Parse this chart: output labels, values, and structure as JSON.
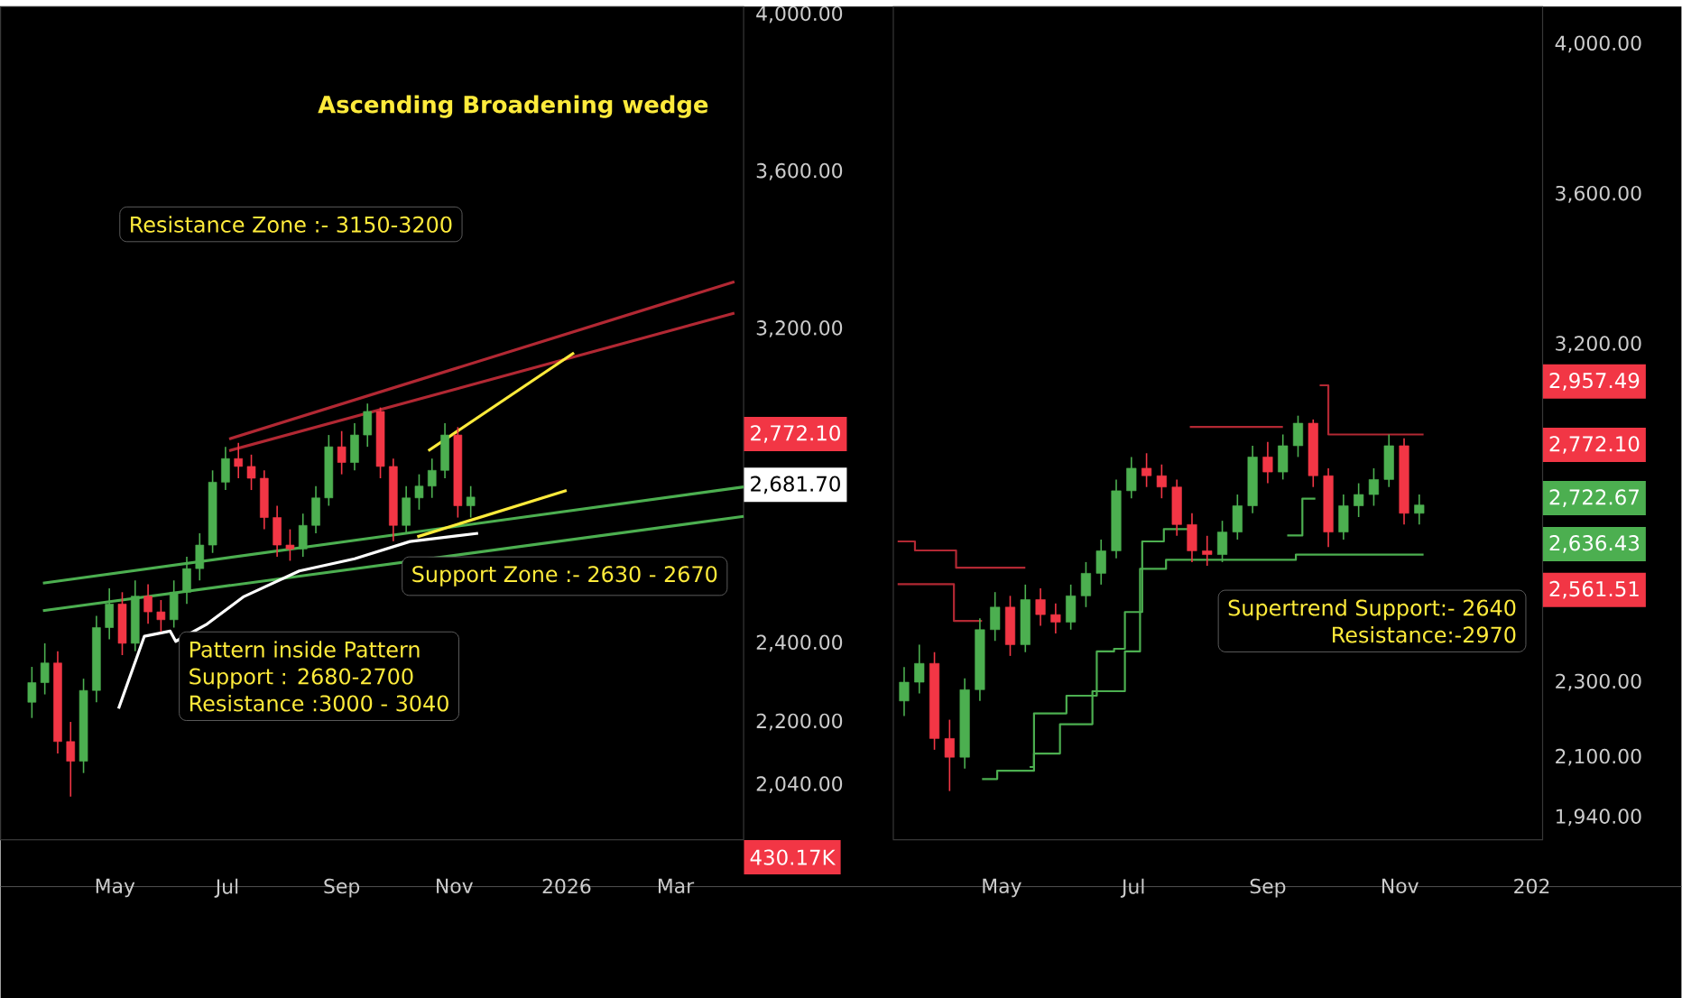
{
  "chart_data": [
    {
      "type": "candlestick",
      "title": "Ascending Broadening wedge",
      "x": [
        "2025-03-17",
        "2025-03-24",
        "2025-03-31",
        "2025-04-07",
        "2025-04-14",
        "2025-04-21",
        "2025-04-28",
        "2025-05-05",
        "2025-05-12",
        "2025-05-19",
        "2025-05-26",
        "2025-06-02",
        "2025-06-09",
        "2025-06-16",
        "2025-06-23",
        "2025-06-30",
        "2025-07-07",
        "2025-07-14",
        "2025-07-21",
        "2025-07-28",
        "2025-08-04",
        "2025-08-11",
        "2025-08-18",
        "2025-08-25",
        "2025-09-01",
        "2025-09-08",
        "2025-09-15",
        "2025-09-22",
        "2025-09-29",
        "2025-10-06",
        "2025-10-13",
        "2025-10-20",
        "2025-10-27",
        "2025-11-03",
        "2025-11-10"
      ],
      "ohlc": [
        [
          2250,
          2340,
          2210,
          2300
        ],
        [
          2300,
          2400,
          2270,
          2350
        ],
        [
          2350,
          2380,
          2120,
          2150
        ],
        [
          2150,
          2200,
          2010,
          2100
        ],
        [
          2100,
          2310,
          2070,
          2280
        ],
        [
          2280,
          2470,
          2250,
          2440
        ],
        [
          2440,
          2540,
          2410,
          2500
        ],
        [
          2500,
          2530,
          2370,
          2400
        ],
        [
          2400,
          2560,
          2380,
          2520
        ],
        [
          2520,
          2550,
          2450,
          2480
        ],
        [
          2480,
          2510,
          2430,
          2460
        ],
        [
          2460,
          2560,
          2440,
          2530
        ],
        [
          2530,
          2620,
          2500,
          2590
        ],
        [
          2590,
          2680,
          2560,
          2650
        ],
        [
          2650,
          2840,
          2630,
          2810
        ],
        [
          2810,
          2900,
          2790,
          2870
        ],
        [
          2870,
          2910,
          2820,
          2850
        ],
        [
          2850,
          2880,
          2790,
          2820
        ],
        [
          2820,
          2840,
          2690,
          2720
        ],
        [
          2720,
          2750,
          2620,
          2650
        ],
        [
          2650,
          2690,
          2610,
          2640
        ],
        [
          2640,
          2730,
          2620,
          2700
        ],
        [
          2700,
          2800,
          2680,
          2770
        ],
        [
          2770,
          2930,
          2750,
          2900
        ],
        [
          2900,
          2940,
          2830,
          2860
        ],
        [
          2860,
          2960,
          2840,
          2930
        ],
        [
          2930,
          3010,
          2900,
          2990
        ],
        [
          2990,
          3000,
          2820,
          2850
        ],
        [
          2850,
          2870,
          2660,
          2700
        ],
        [
          2700,
          2800,
          2680,
          2770
        ],
        [
          2770,
          2830,
          2740,
          2800
        ],
        [
          2800,
          2870,
          2770,
          2840
        ],
        [
          2840,
          2960,
          2820,
          2930
        ],
        [
          2930,
          2950,
          2720,
          2750
        ],
        [
          2750,
          2800,
          2720,
          2772.1
        ]
      ],
      "series": [
        {
          "type": "line",
          "color": "#b22833",
          "x": [
            "2025-07-02",
            "2026-04-02"
          ],
          "values": [
            2890,
            3240
          ]
        },
        {
          "type": "line",
          "color": "#b22833",
          "x": [
            "2025-07-02",
            "2026-04-02"
          ],
          "values": [
            2920,
            3320
          ]
        },
        {
          "type": "line",
          "color": "#4caf50",
          "x": [
            "2025-03-23",
            "2026-04-07"
          ],
          "values": [
            2553,
            2798
          ]
        },
        {
          "type": "line",
          "color": "#4caf50",
          "x": [
            "2025-03-23",
            "2026-04-07"
          ],
          "values": [
            2483,
            2723
          ]
        },
        {
          "type": "line",
          "color": "#ffeb3b",
          "x": [
            "2025-10-18",
            "2026-01-05"
          ],
          "values": [
            2890,
            3139
          ]
        },
        {
          "type": "line",
          "color": "#ffeb3b",
          "x": [
            "2025-10-12",
            "2026-01-01"
          ],
          "values": [
            2671,
            2789
          ]
        },
        {
          "type": "line",
          "color": "#ffffff",
          "x": [
            "2025-05-03",
            "2025-05-17",
            "2025-05-31",
            "2025-06-03",
            "2025-06-20",
            "2025-07-10",
            "2025-08-09",
            "2025-09-08",
            "2025-10-08",
            "2025-11-14"
          ],
          "values": [
            2234,
            2418,
            2431,
            2405,
            2449,
            2519,
            2584,
            2615,
            2659,
            2680
          ]
        }
      ],
      "annotations": [
        "Resistance Zone :- 3150-3200",
        "Support Zone :- 2630 - 2670",
        "Pattern inside Pattern",
        "Support : 2680-2700",
        "Resistance :3000 - 3040",
        "2,772.10",
        "2,681.70",
        "430.17K"
      ],
      "xlim": [
        "2025-02-28",
        "2026-04-07"
      ],
      "xticks": [
        {
          "value": "2025-05-01",
          "label": "May"
        },
        {
          "value": "2025-07-01",
          "label": "Jul"
        },
        {
          "value": "2025-09-01",
          "label": "Sep"
        },
        {
          "value": "2025-11-01",
          "label": "Nov"
        },
        {
          "value": "2026-01-01",
          "label": "2026"
        },
        {
          "value": "2026-03-01",
          "label": "Mar"
        }
      ],
      "ylim": [
        1900,
        4020
      ],
      "yticks": [
        {
          "value": 2040,
          "label": "2,040.00"
        },
        {
          "value": 2200,
          "label": "2,200.00"
        },
        {
          "value": 2400,
          "label": "2,400.00"
        },
        {
          "value": 3200,
          "label": "3,200.00"
        },
        {
          "value": 3600,
          "label": "3,600.00"
        },
        {
          "value": 4000,
          "label": "4,000.00"
        }
      ]
    },
    {
      "type": "candlestick",
      "x": [
        "2025-03-17",
        "2025-03-24",
        "2025-03-31",
        "2025-04-07",
        "2025-04-14",
        "2025-04-21",
        "2025-04-28",
        "2025-05-05",
        "2025-05-12",
        "2025-05-19",
        "2025-05-26",
        "2025-06-02",
        "2025-06-09",
        "2025-06-16",
        "2025-06-23",
        "2025-06-30",
        "2025-07-07",
        "2025-07-14",
        "2025-07-21",
        "2025-07-28",
        "2025-08-04",
        "2025-08-11",
        "2025-08-18",
        "2025-08-25",
        "2025-09-01",
        "2025-09-08",
        "2025-09-15",
        "2025-09-22",
        "2025-09-29",
        "2025-10-06",
        "2025-10-13",
        "2025-10-20",
        "2025-10-27",
        "2025-11-03",
        "2025-11-10"
      ],
      "ohlc": [
        [
          2250,
          2340,
          2210,
          2300
        ],
        [
          2300,
          2400,
          2270,
          2350
        ],
        [
          2350,
          2380,
          2120,
          2150
        ],
        [
          2150,
          2200,
          2010,
          2100
        ],
        [
          2100,
          2310,
          2070,
          2280
        ],
        [
          2280,
          2470,
          2250,
          2440
        ],
        [
          2440,
          2540,
          2410,
          2500
        ],
        [
          2500,
          2530,
          2370,
          2400
        ],
        [
          2400,
          2560,
          2380,
          2520
        ],
        [
          2520,
          2550,
          2450,
          2480
        ],
        [
          2480,
          2510,
          2430,
          2460
        ],
        [
          2460,
          2560,
          2440,
          2530
        ],
        [
          2530,
          2620,
          2500,
          2590
        ],
        [
          2590,
          2680,
          2560,
          2650
        ],
        [
          2650,
          2840,
          2630,
          2810
        ],
        [
          2810,
          2900,
          2790,
          2870
        ],
        [
          2870,
          2910,
          2820,
          2850
        ],
        [
          2850,
          2880,
          2790,
          2820
        ],
        [
          2820,
          2840,
          2690,
          2720
        ],
        [
          2720,
          2750,
          2620,
          2650
        ],
        [
          2650,
          2690,
          2610,
          2640
        ],
        [
          2640,
          2730,
          2620,
          2700
        ],
        [
          2700,
          2800,
          2680,
          2770
        ],
        [
          2770,
          2930,
          2750,
          2900
        ],
        [
          2900,
          2940,
          2830,
          2860
        ],
        [
          2860,
          2960,
          2840,
          2930
        ],
        [
          2930,
          3010,
          2900,
          2990
        ],
        [
          2990,
          3000,
          2820,
          2850
        ],
        [
          2850,
          2870,
          2660,
          2700
        ],
        [
          2700,
          2800,
          2680,
          2770
        ],
        [
          2770,
          2830,
          2740,
          2800
        ],
        [
          2800,
          2870,
          2770,
          2840
        ],
        [
          2840,
          2960,
          2820,
          2930
        ],
        [
          2930,
          2950,
          2720,
          2750
        ],
        [
          2750,
          2800,
          2720,
          2772.1
        ]
      ],
      "series": [
        {
          "type": "step",
          "color": "#b22833",
          "x": [
            "2025-03-14",
            "2025-03-22",
            "2025-04-10",
            "2025-05-12"
          ],
          "values": [
            2675,
            2651,
            2605,
            2605
          ]
        },
        {
          "type": "step",
          "color": "#b22833",
          "x": [
            "2025-03-14",
            "2025-04-09",
            "2025-04-22"
          ],
          "values": [
            2561,
            2463,
            2463
          ]
        },
        {
          "type": "step",
          "color": "#4caf50",
          "x": [
            "2025-04-22",
            "2025-04-29",
            "2025-05-16",
            "2025-05-31",
            "2025-06-14",
            "2025-06-22",
            "2025-06-27",
            "2025-07-05",
            "2025-07-15",
            "2025-07-26"
          ],
          "values": [
            2042,
            2064,
            2217,
            2264,
            2382,
            2389,
            2487,
            2675,
            2708,
            2708
          ]
        },
        {
          "type": "step",
          "color": "#4caf50",
          "x": [
            "2025-05-14",
            "2025-05-16",
            "2025-05-28",
            "2025-06-12",
            "2025-06-27",
            "2025-07-04",
            "2025-07-16",
            "2025-09-14",
            "2025-11-12"
          ],
          "values": [
            2074,
            2110,
            2188,
            2276,
            2382,
            2602,
            2626,
            2640,
            2640
          ]
        },
        {
          "type": "step",
          "color": "#4caf50",
          "x": [
            "2025-09-10",
            "2025-09-17",
            "2025-09-23"
          ],
          "values": [
            2691,
            2789,
            2789
          ]
        },
        {
          "type": "step",
          "color": "#b22833",
          "x": [
            "2025-07-27",
            "2025-09-08"
          ],
          "values": [
            2980,
            2980
          ]
        },
        {
          "type": "step",
          "color": "#b22833",
          "x": [
            "2025-09-25",
            "2025-09-29",
            "2025-11-12"
          ],
          "values": [
            3091,
            2960,
            2960
          ]
        }
      ],
      "annotations": [
        "Supertrend Support:- 2640",
        "Resistance:-2970",
        "2,957.49",
        "2,772.10",
        "2,722.67",
        "2,636.43",
        "2,561.51"
      ],
      "xlim": [
        "2025-03-12",
        "2026-01-06"
      ],
      "xticks": [
        {
          "value": "2025-05-01",
          "label": "May"
        },
        {
          "value": "2025-07-01",
          "label": "Jul"
        },
        {
          "value": "2025-09-01",
          "label": "Sep"
        },
        {
          "value": "2025-11-01",
          "label": "Nov"
        },
        {
          "value": "2026-01-01",
          "label": "202"
        }
      ],
      "ylim": [
        1880,
        4100
      ],
      "yticks": [
        {
          "value": 1940,
          "label": "1,940.00"
        },
        {
          "value": 2100,
          "label": "2,100.00"
        },
        {
          "value": 2300,
          "label": "2,300.00"
        },
        {
          "value": 3200,
          "label": "3,200.00"
        },
        {
          "value": 3600,
          "label": "3,600.00"
        },
        {
          "value": 4000,
          "label": "4,000.00"
        }
      ]
    }
  ]
}
